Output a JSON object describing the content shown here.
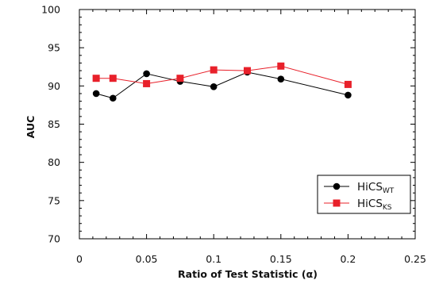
{
  "chart_data": {
    "type": "line",
    "xlabel": "Ratio of Test Statistic (α)",
    "ylabel": "AUC",
    "xlim": [
      0,
      0.25
    ],
    "ylim": [
      70,
      100
    ],
    "x_ticks": [
      "0",
      "0.05",
      "0.1",
      "0.15",
      "0.2",
      "0.25"
    ],
    "y_ticks": [
      "70",
      "75",
      "80",
      "85",
      "90",
      "95",
      "100"
    ],
    "grid": false,
    "legend_position": "lower-right",
    "series": [
      {
        "name_main": "HiCS",
        "name_sub": "WT",
        "marker": "circle",
        "color": "#000000",
        "x": [
          0.0125,
          0.025,
          0.05,
          0.075,
          0.1,
          0.125,
          0.15,
          0.2
        ],
        "y": [
          89.0,
          88.4,
          91.6,
          90.6,
          89.9,
          91.8,
          90.9,
          88.8
        ]
      },
      {
        "name_main": "HiCS",
        "name_sub": "KS",
        "marker": "square",
        "color": "#e8202a",
        "x": [
          0.0125,
          0.025,
          0.05,
          0.075,
          0.1,
          0.125,
          0.15,
          0.2
        ],
        "y": [
          91.0,
          91.0,
          90.3,
          91.0,
          92.1,
          92.0,
          92.6,
          90.2
        ]
      }
    ]
  }
}
